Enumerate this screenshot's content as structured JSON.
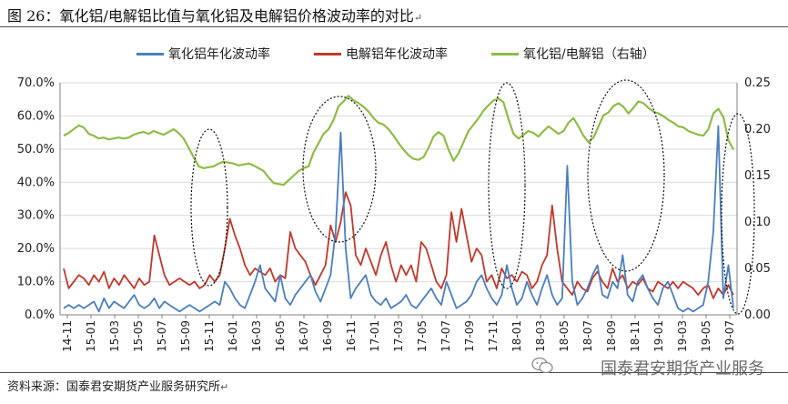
{
  "title": "图 26：氧化铝/电解铝比值与氧化铝及电解铝价格波动率的对比",
  "title_suffix": "↵",
  "source": "资料来源：国泰君安期货产业服务研究所",
  "source_suffix": "↵",
  "watermark": "国泰君安期货产业服务",
  "colors": {
    "blue": "#4a7fbf",
    "red": "#c0392b",
    "green": "#8fbc45",
    "grid": "#d9d9d9",
    "axis": "#808080"
  },
  "chart_data": {
    "type": "line",
    "legend_position": "top",
    "y_left": {
      "min": 0,
      "max": 0.7,
      "ticks": [
        "0.0%",
        "10.0%",
        "20.0%",
        "30.0%",
        "40.0%",
        "50.0%",
        "60.0%",
        "70.0%"
      ]
    },
    "y_right": {
      "min": 0,
      "max": 0.25,
      "ticks": [
        "0.00",
        "0.05",
        "0.10",
        "0.15",
        "0.20",
        "0.25"
      ]
    },
    "x_tick_labels": [
      "14-11",
      "15-01",
      "15-03",
      "15-05",
      "15-07",
      "15-09",
      "15-11",
      "16-01",
      "16-03",
      "16-05",
      "16-07",
      "16-09",
      "16-11",
      "17-01",
      "17-03",
      "17-05",
      "17-07",
      "17-09",
      "17-11",
      "18-01",
      "18-03",
      "18-05",
      "18-07",
      "18-09",
      "18-11",
      "19-01",
      "19-03",
      "19-05",
      "19-07"
    ],
    "series": [
      {
        "name": "氧化铝年化波动率",
        "axis": "left",
        "color": "#4a7fbf",
        "values": [
          0.02,
          0.03,
          0.02,
          0.03,
          0.02,
          0.03,
          0.04,
          0.01,
          0.05,
          0.02,
          0.04,
          0.03,
          0.02,
          0.04,
          0.06,
          0.03,
          0.02,
          0.03,
          0.05,
          0.02,
          0.04,
          0.03,
          0.02,
          0.01,
          0.02,
          0.03,
          0.02,
          0.01,
          0.02,
          0.03,
          0.04,
          0.03,
          0.1,
          0.08,
          0.05,
          0.03,
          0.02,
          0.06,
          0.1,
          0.15,
          0.08,
          0.06,
          0.04,
          0.12,
          0.05,
          0.03,
          0.06,
          0.08,
          0.1,
          0.12,
          0.07,
          0.04,
          0.08,
          0.12,
          0.25,
          0.55,
          0.2,
          0.05,
          0.08,
          0.1,
          0.12,
          0.06,
          0.04,
          0.03,
          0.05,
          0.02,
          0.03,
          0.04,
          0.06,
          0.03,
          0.02,
          0.04,
          0.06,
          0.08,
          0.05,
          0.03,
          0.1,
          0.06,
          0.02,
          0.03,
          0.04,
          0.06,
          0.1,
          0.12,
          0.08,
          0.05,
          0.03,
          0.06,
          0.15,
          0.08,
          0.03,
          0.05,
          0.1,
          0.06,
          0.03,
          0.08,
          0.12,
          0.06,
          0.03,
          0.05,
          0.45,
          0.1,
          0.03,
          0.05,
          0.08,
          0.12,
          0.15,
          0.06,
          0.05,
          0.1,
          0.08,
          0.18,
          0.06,
          0.04,
          0.1,
          0.12,
          0.08,
          0.05,
          0.03,
          0.08,
          0.1,
          0.06,
          0.02,
          0.01,
          0.02,
          0.01,
          0.02,
          0.03,
          0.1,
          0.25,
          0.57,
          0.05,
          0.15,
          0.02
        ]
      },
      {
        "name": "电解铝年化波动率",
        "axis": "left",
        "color": "#c0392b",
        "values": [
          0.14,
          0.08,
          0.1,
          0.12,
          0.11,
          0.09,
          0.12,
          0.1,
          0.13,
          0.08,
          0.11,
          0.09,
          0.12,
          0.1,
          0.08,
          0.11,
          0.09,
          0.1,
          0.24,
          0.18,
          0.12,
          0.09,
          0.1,
          0.11,
          0.1,
          0.09,
          0.1,
          0.08,
          0.09,
          0.12,
          0.1,
          0.12,
          0.2,
          0.29,
          0.24,
          0.2,
          0.15,
          0.12,
          0.14,
          0.13,
          0.12,
          0.14,
          0.1,
          0.12,
          0.11,
          0.25,
          0.2,
          0.18,
          0.16,
          0.12,
          0.09,
          0.12,
          0.15,
          0.27,
          0.22,
          0.28,
          0.37,
          0.33,
          0.18,
          0.15,
          0.2,
          0.16,
          0.12,
          0.18,
          0.22,
          0.15,
          0.1,
          0.15,
          0.12,
          0.15,
          0.1,
          0.22,
          0.2,
          0.15,
          0.1,
          0.08,
          0.12,
          0.31,
          0.22,
          0.32,
          0.24,
          0.16,
          0.2,
          0.18,
          0.1,
          0.12,
          0.08,
          0.14,
          0.11,
          0.12,
          0.1,
          0.13,
          0.12,
          0.08,
          0.1,
          0.15,
          0.18,
          0.33,
          0.2,
          0.1,
          0.08,
          0.06,
          0.1,
          0.08,
          0.07,
          0.11,
          0.13,
          0.1,
          0.08,
          0.14,
          0.1,
          0.12,
          0.08,
          0.1,
          0.09,
          0.11,
          0.08,
          0.07,
          0.1,
          0.09,
          0.08,
          0.1,
          0.08,
          0.1,
          0.09,
          0.08,
          0.06,
          0.08,
          0.09,
          0.05,
          0.08,
          0.06,
          0.09,
          0.06
        ]
      },
      {
        "name": "氧化铝/电解铝（右轴）",
        "axis": "right",
        "color": "#8fbc45",
        "values": [
          0.193,
          0.196,
          0.2,
          0.204,
          0.202,
          0.195,
          0.193,
          0.19,
          0.191,
          0.189,
          0.19,
          0.191,
          0.19,
          0.191,
          0.194,
          0.196,
          0.197,
          0.195,
          0.198,
          0.196,
          0.194,
          0.197,
          0.2,
          0.196,
          0.19,
          0.18,
          0.17,
          0.16,
          0.158,
          0.159,
          0.16,
          0.163,
          0.165,
          0.164,
          0.163,
          0.161,
          0.162,
          0.163,
          0.161,
          0.158,
          0.155,
          0.148,
          0.142,
          0.141,
          0.14,
          0.145,
          0.15,
          0.155,
          0.158,
          0.16,
          0.175,
          0.185,
          0.195,
          0.2,
          0.21,
          0.225,
          0.23,
          0.236,
          0.231,
          0.228,
          0.224,
          0.219,
          0.212,
          0.207,
          0.205,
          0.2,
          0.193,
          0.185,
          0.178,
          0.172,
          0.168,
          0.167,
          0.17,
          0.18,
          0.192,
          0.197,
          0.193,
          0.178,
          0.166,
          0.174,
          0.186,
          0.198,
          0.205,
          0.212,
          0.22,
          0.226,
          0.231,
          0.233,
          0.229,
          0.211,
          0.195,
          0.19,
          0.194,
          0.198,
          0.196,
          0.192,
          0.198,
          0.203,
          0.199,
          0.195,
          0.198,
          0.207,
          0.212,
          0.203,
          0.193,
          0.186,
          0.191,
          0.203,
          0.215,
          0.218,
          0.225,
          0.228,
          0.224,
          0.217,
          0.223,
          0.23,
          0.228,
          0.223,
          0.219,
          0.217,
          0.214,
          0.21,
          0.207,
          0.203,
          0.202,
          0.198,
          0.196,
          0.194,
          0.193,
          0.2,
          0.217,
          0.222,
          0.213,
          0.188,
          0.178
        ]
      }
    ]
  }
}
